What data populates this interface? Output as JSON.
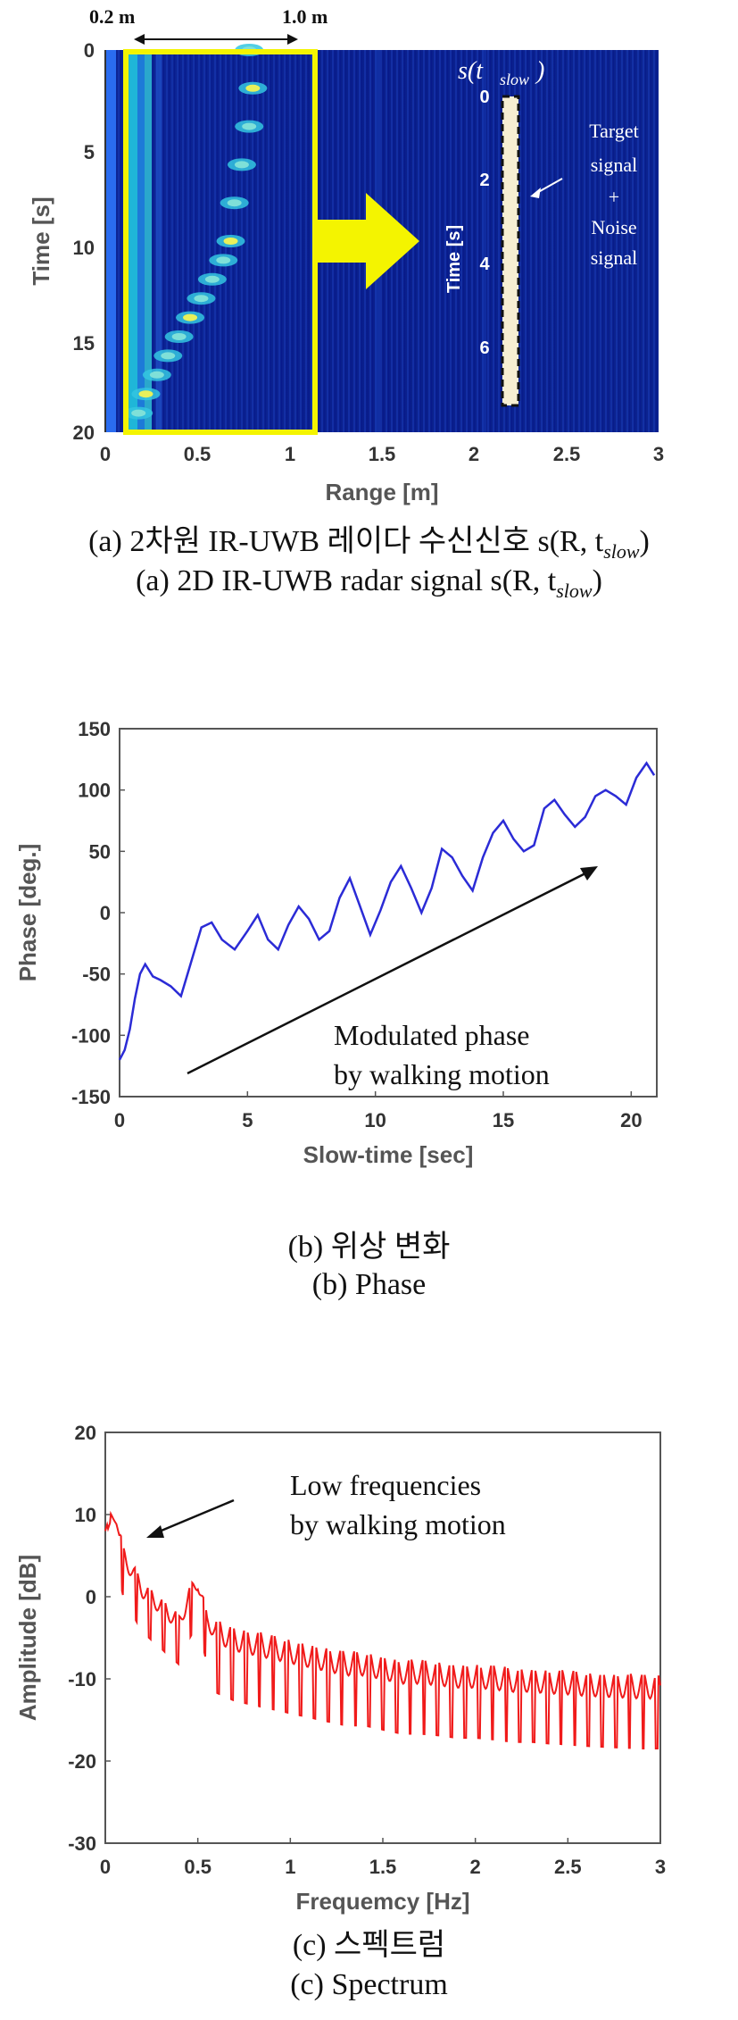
{
  "panel_a": {
    "top_left_label": "0.2 m",
    "top_right_label": "1.0 m",
    "inset_title": "s(t",
    "inset_title_sub": "slow",
    "inset_title_close": ")",
    "inset_ylabel": "Time [s]",
    "inset_yticks": [
      "0",
      "2",
      "4",
      "6"
    ],
    "inset_annotation": [
      "Target",
      "signal",
      "+",
      "Noise",
      "signal"
    ],
    "caption_kr": "(a) 2차원 IR-UWB 레이다 수신신호 s(R, t",
    "caption_en": "(a) 2D IR-UWB radar signal s(R, t",
    "caption_sub": "slow",
    "caption_close": ")",
    "colors": {
      "background": "#0a1f8c",
      "highlight_box": "#f4f400",
      "arrow": "#f4f400"
    }
  },
  "panel_b": {
    "annotation_line1": "Modulated phase",
    "annotation_line2": "by walking  motion",
    "caption_kr": "(b)  위상 변화",
    "caption_en": "(b)  Phase",
    "line_color": "#2b2bd6"
  },
  "panel_c": {
    "annotation_line1": "Low frequencies",
    "annotation_line2": "by walking  motion",
    "caption_kr": "(c)  스펙트럼",
    "caption_en": "(c)  Spectrum",
    "line_color": "#f01a1a"
  },
  "chart_data": [
    {
      "type": "heatmap",
      "xlabel": "Range [m]",
      "ylabel": "Time [s]",
      "xlim": [
        0,
        3
      ],
      "ylim": [
        20,
        0
      ],
      "xticks": [
        "0",
        "0.5",
        "1",
        "1.5",
        "2",
        "2.5",
        "3"
      ],
      "yticks": [
        "0",
        "5",
        "10",
        "15",
        "20"
      ],
      "highlight_range_m": [
        0.2,
        1.0
      ],
      "target_track": [
        {
          "t": 0,
          "r": 0.78
        },
        {
          "t": 2,
          "r": 0.8
        },
        {
          "t": 4,
          "r": 0.78
        },
        {
          "t": 6,
          "r": 0.74
        },
        {
          "t": 8,
          "r": 0.7
        },
        {
          "t": 10,
          "r": 0.68
        },
        {
          "t": 11,
          "r": 0.64
        },
        {
          "t": 12,
          "r": 0.58
        },
        {
          "t": 13,
          "r": 0.52
        },
        {
          "t": 14,
          "r": 0.46
        },
        {
          "t": 15,
          "r": 0.4
        },
        {
          "t": 16,
          "r": 0.34
        },
        {
          "t": 17,
          "r": 0.28
        },
        {
          "t": 18,
          "r": 0.22
        },
        {
          "t": 19,
          "r": 0.18
        }
      ],
      "grid": false
    },
    {
      "type": "line",
      "xlabel": "Slow-time [sec]",
      "ylabel": "Phase [deg.]",
      "xlim": [
        0,
        21
      ],
      "ylim": [
        -150,
        150
      ],
      "xticks": [
        "0",
        "5",
        "10",
        "15",
        "20"
      ],
      "yticks": [
        "150",
        "100",
        "50",
        "0",
        "-50",
        "-100",
        "-150"
      ],
      "series": [
        {
          "x": [
            0,
            0.2,
            0.4,
            0.6,
            0.8,
            1.0,
            1.3,
            1.6,
            2.0,
            2.4,
            2.8,
            3.2,
            3.6,
            4.0,
            4.5,
            5.0,
            5.4,
            5.8,
            6.2,
            6.6,
            7.0,
            7.4,
            7.8,
            8.2,
            8.6,
            9.0,
            9.4,
            9.8,
            10.2,
            10.6,
            11.0,
            11.4,
            11.8,
            12.2,
            12.6,
            13.0,
            13.4,
            13.8,
            14.2,
            14.6,
            15.0,
            15.4,
            15.8,
            16.2,
            16.6,
            17.0,
            17.4,
            17.8,
            18.2,
            18.6,
            19.0,
            19.4,
            19.8,
            20.2,
            20.6,
            20.9
          ],
          "y": [
            -120,
            -112,
            -95,
            -70,
            -50,
            -42,
            -52,
            -55,
            -60,
            -68,
            -40,
            -12,
            -8,
            -22,
            -30,
            -15,
            -2,
            -22,
            -30,
            -10,
            5,
            -5,
            -22,
            -15,
            12,
            28,
            5,
            -18,
            2,
            25,
            38,
            20,
            0,
            20,
            52,
            45,
            30,
            18,
            45,
            65,
            75,
            60,
            50,
            55,
            85,
            92,
            80,
            70,
            78,
            95,
            100,
            95,
            88,
            110,
            122,
            112
          ]
        }
      ],
      "grid": false
    },
    {
      "type": "line",
      "xlabel": "Frequemcy [Hz]",
      "ylabel": "Amplitude [dB]",
      "xlim": [
        0,
        3
      ],
      "ylim": [
        -30,
        20
      ],
      "xticks": [
        "0",
        "0.5",
        "1",
        "1.5",
        "2",
        "2.5",
        "3"
      ],
      "yticks": [
        "20",
        "10",
        "0",
        "-10",
        "-20",
        "-30"
      ],
      "series": [
        {
          "x": [
            0,
            0.03,
            0.06,
            0.1,
            0.15,
            0.2,
            0.25,
            0.3,
            0.35,
            0.4,
            0.45,
            0.5,
            0.55,
            0.6,
            0.7,
            0.8,
            0.9,
            1.0,
            1.1,
            1.2,
            1.3,
            1.4,
            1.5,
            1.6,
            1.7,
            1.8,
            1.9,
            2.0,
            2.1,
            2.2,
            2.3,
            2.4,
            2.5,
            2.6,
            2.7,
            2.8,
            2.9,
            3.0
          ],
          "y": [
            8,
            10,
            9,
            5,
            3,
            1,
            0,
            -1,
            -2,
            -3,
            0,
            2,
            -3,
            -4,
            -5,
            -5.5,
            -6,
            -6.5,
            -7,
            -7.5,
            -8,
            -8,
            -8.5,
            -9,
            -9,
            -9.2,
            -9.5,
            -9.5,
            -9.7,
            -10,
            -10,
            -10.2,
            -10.3,
            -10.5,
            -10.6,
            -10.7,
            -10.8,
            -10.8
          ]
        }
      ],
      "grid": false
    }
  ]
}
